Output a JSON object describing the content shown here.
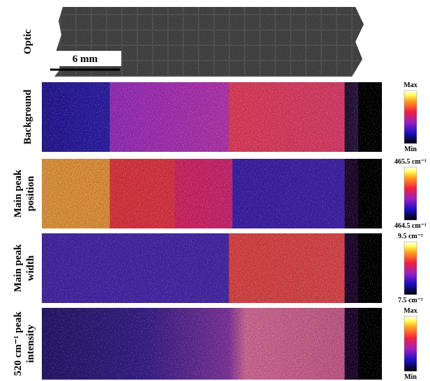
{
  "optic": {
    "label": "Optic",
    "scale_bar": "6 mm"
  },
  "panels": [
    {
      "label_lines": [
        "Background"
      ],
      "max_label": "Max",
      "min_label": "Min"
    },
    {
      "label_lines": [
        "Main peak",
        "position"
      ],
      "max_label": "465.5 cm⁻¹",
      "min_label": "464.5 cm⁻¹"
    },
    {
      "label_lines": [
        "Main peak",
        "width"
      ],
      "max_label": "9.5 cm⁻¹",
      "min_label": "7.5 cm⁻¹"
    },
    {
      "label_lines": [
        "520 cm⁻¹ peak",
        "intensity"
      ],
      "max_label": "Max",
      "min_label": "Min"
    }
  ]
}
